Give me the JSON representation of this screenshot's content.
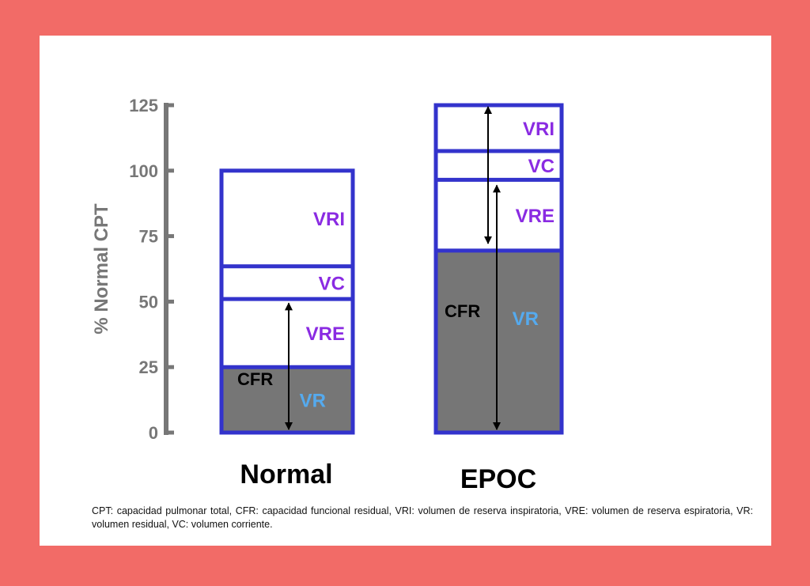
{
  "colors": {
    "frame_bg": "#f26b67",
    "card_bg": "#ffffff",
    "box_border": "#3333cc",
    "residual_fill": "#767676",
    "volume_label": "#8a2be2",
    "vr_label": "#55aaee",
    "axis": "#777777",
    "arrow": "#000000"
  },
  "chart_data": {
    "type": "stacked-bar",
    "ylabel": "% Normal CPT",
    "ylim": [
      0,
      125
    ],
    "y_ticks": [
      0,
      25,
      50,
      75,
      100,
      125
    ],
    "grid": false,
    "bars": [
      {
        "name": "Normal",
        "segments": [
          {
            "label": "VR",
            "from": 0,
            "to": 25,
            "filled": true
          },
          {
            "label": "VRE",
            "from": 25,
            "to": 51,
            "filled": false
          },
          {
            "label": "VC",
            "from": 51,
            "to": 63.5,
            "filled": false
          },
          {
            "label": "VRI",
            "from": 63.5,
            "to": 100,
            "filled": false
          }
        ],
        "annotations": [
          {
            "label": "CFR",
            "from": 0,
            "to": 50,
            "type": "double-arrow"
          }
        ]
      },
      {
        "name": "EPOC",
        "segments": [
          {
            "label": "VR",
            "from": 0,
            "to": 69.5,
            "filled": true
          },
          {
            "label": "VRE",
            "from": 69.5,
            "to": 96.5,
            "filled": false
          },
          {
            "label": "VC",
            "from": 96.5,
            "to": 107.5,
            "filled": false
          },
          {
            "label": "VRI",
            "from": 107.5,
            "to": 125,
            "filled": false
          }
        ],
        "annotations": [
          {
            "label": "CFR",
            "from": 0,
            "to": 95,
            "type": "double-arrow"
          },
          {
            "label": "",
            "from": 71,
            "to": 125,
            "type": "double-arrow"
          }
        ]
      }
    ]
  },
  "footnote": "CPT: capacidad pulmonar total, CFR: capacidad funcional residual, VRI: volumen de reserva inspiratoria, VRE: volumen de reserva espiratoria, VR: volumen residual, VC: volumen corriente."
}
